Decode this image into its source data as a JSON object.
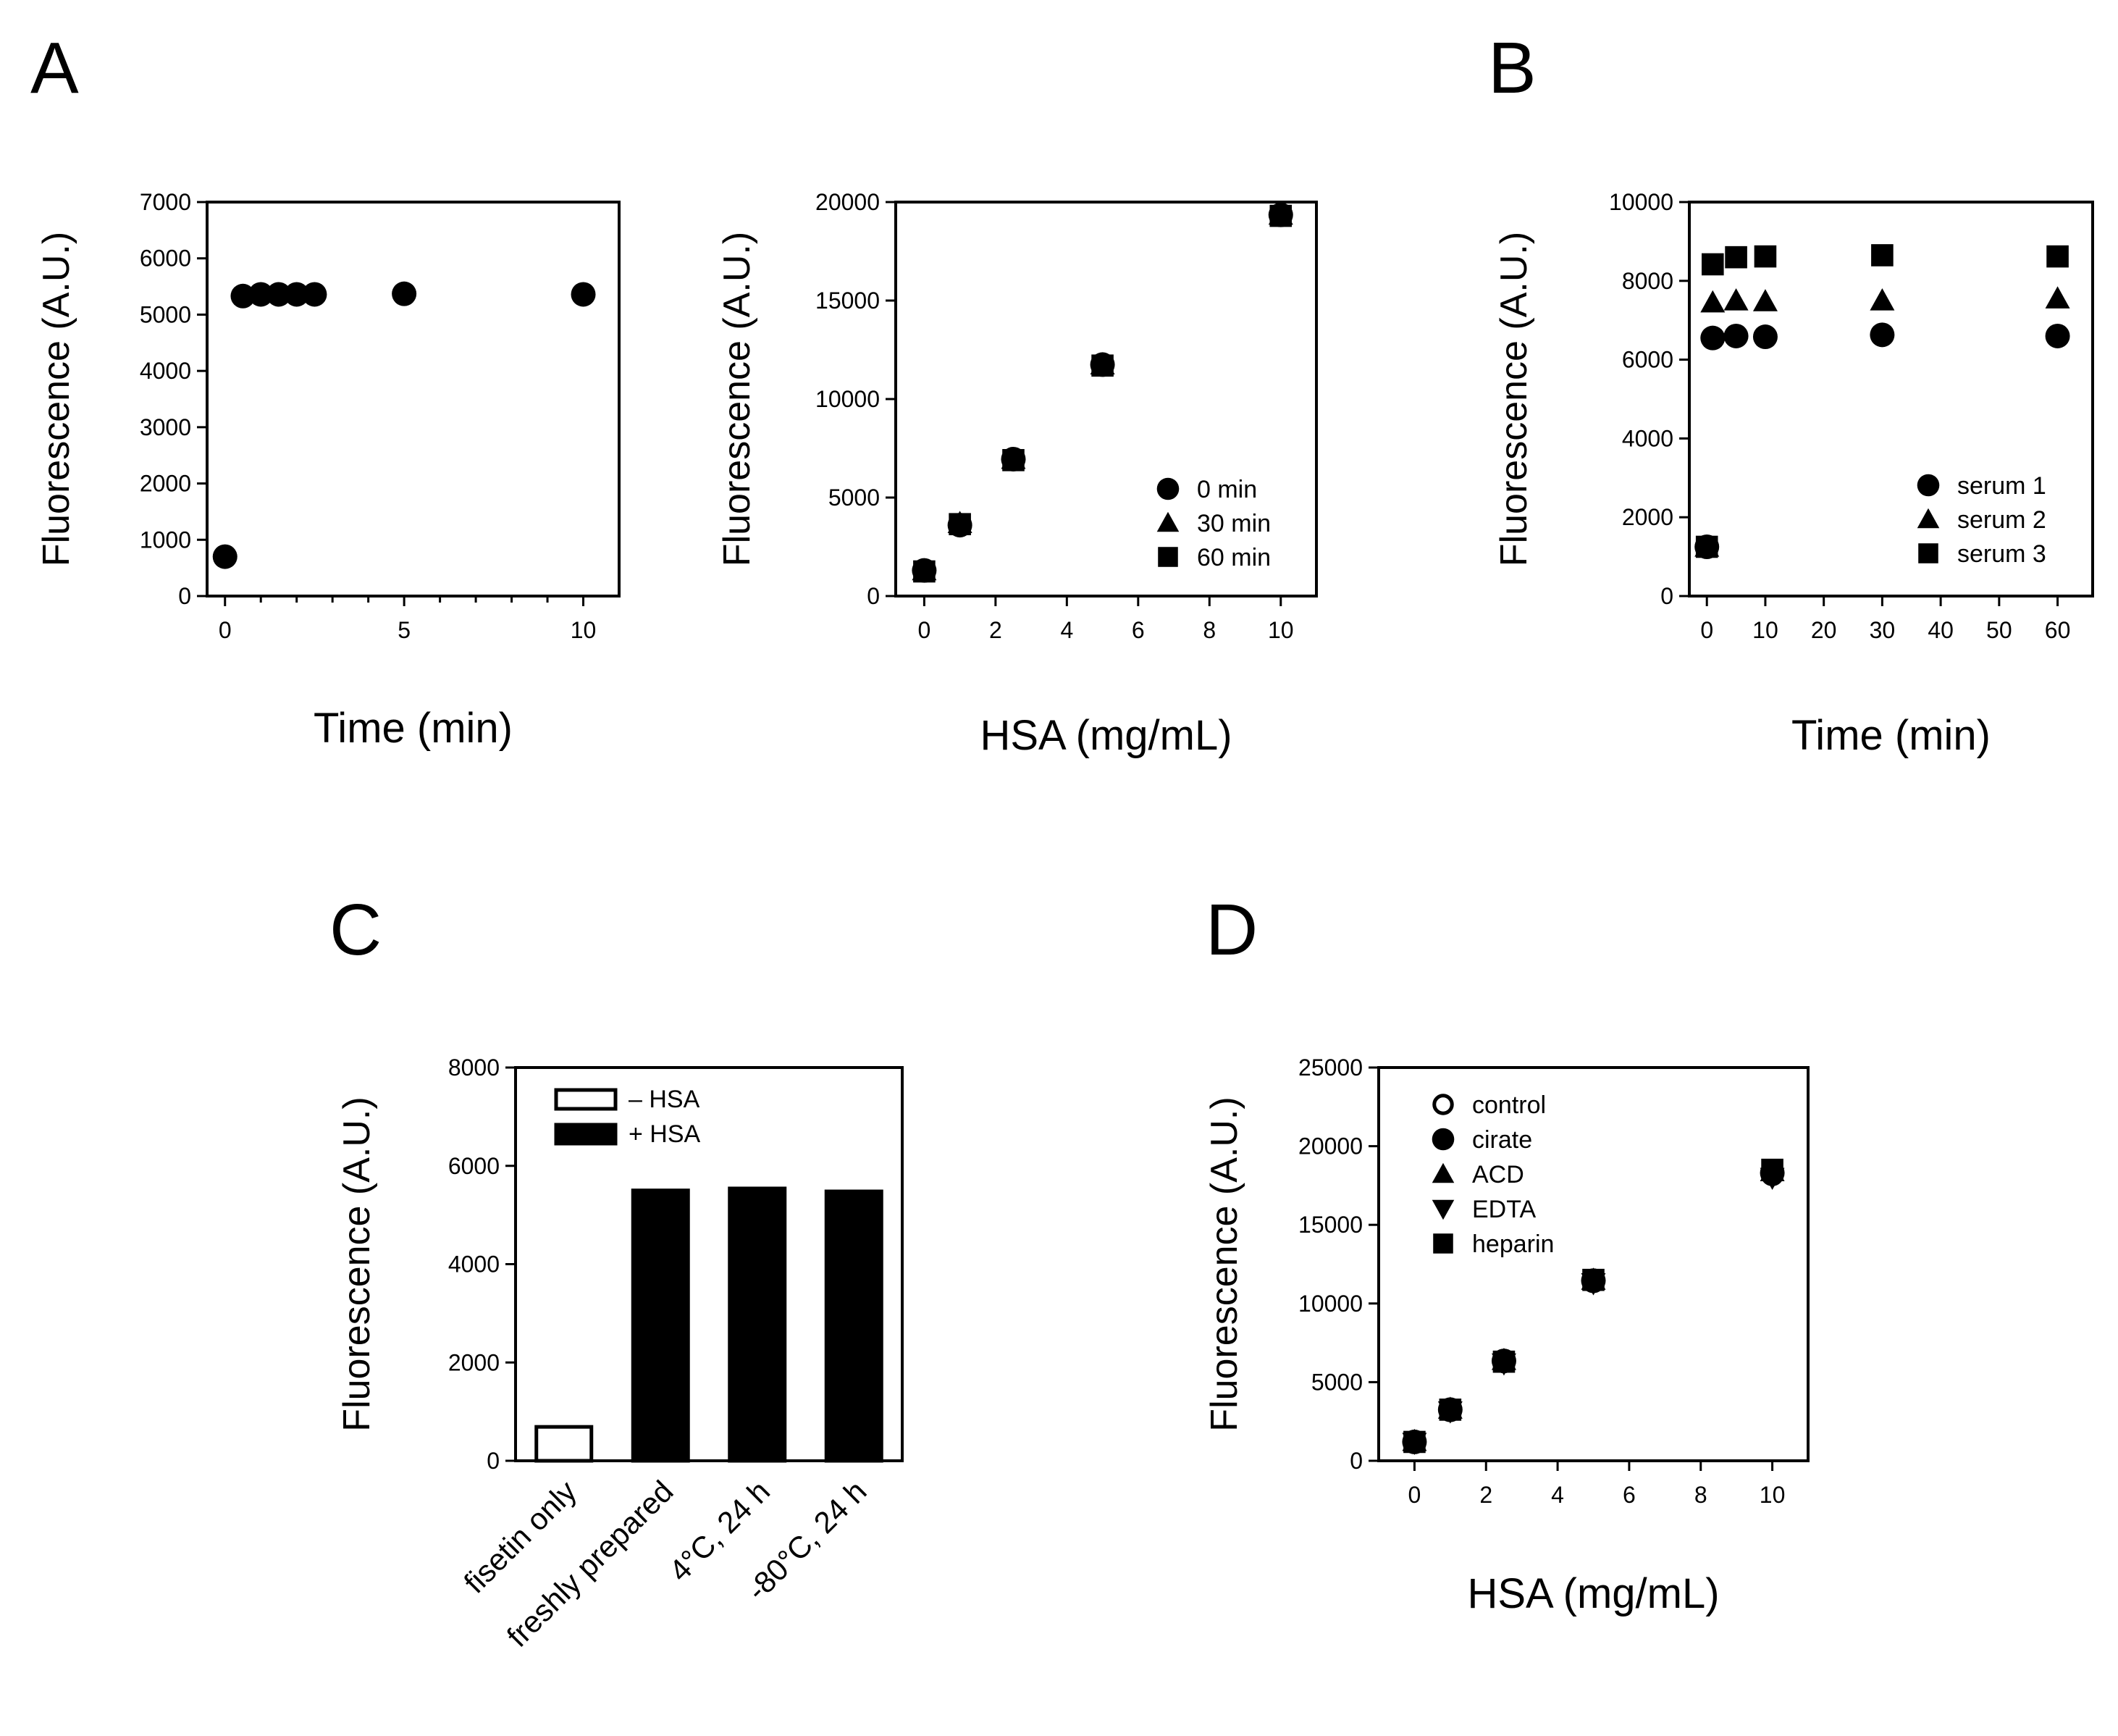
{
  "panel_letters": [
    "A",
    "B",
    "C",
    "D"
  ],
  "chart_data": [
    {
      "id": "A1",
      "type": "scatter",
      "title": "",
      "xlabel": "Time (min)",
      "ylabel": "Fluorescence (A.U.)",
      "xlim": [
        -0.5,
        11
      ],
      "ylim": [
        0,
        7000
      ],
      "xticks": [
        0,
        5,
        10
      ],
      "yticks": [
        0,
        1000,
        2000,
        3000,
        4000,
        5000,
        6000,
        7000
      ],
      "xminor": [
        1,
        2,
        3,
        4,
        6,
        7,
        8,
        9
      ],
      "series": [
        {
          "name": "",
          "marker": "circle",
          "x": [
            0,
            0.5,
            1,
            1.5,
            2,
            2.5,
            5,
            10
          ],
          "y": [
            700,
            5330,
            5360,
            5360,
            5360,
            5360,
            5370,
            5360
          ]
        }
      ]
    },
    {
      "id": "A2",
      "type": "scatter",
      "title": "",
      "xlabel": "HSA (mg/mL)",
      "ylabel": "Fluorescence (A.U.)",
      "xlim": [
        -0.8,
        11
      ],
      "ylim": [
        0,
        20000
      ],
      "xticks": [
        0,
        2,
        4,
        6,
        8,
        10
      ],
      "yticks": [
        0,
        5000,
        10000,
        15000,
        20000
      ],
      "legend": {
        "position": "bottom-right",
        "entries": [
          "0 min",
          "30 min",
          "60 min"
        ]
      },
      "series": [
        {
          "name": "0 min",
          "marker": "circle",
          "x": [
            0,
            1,
            2.5,
            5,
            10
          ],
          "y": [
            1300,
            3600,
            6950,
            11750,
            19350
          ]
        },
        {
          "name": "30 min",
          "marker": "triangle",
          "x": [
            0,
            1,
            2.5,
            5,
            10
          ],
          "y": [
            1300,
            3700,
            6950,
            11750,
            19350
          ]
        },
        {
          "name": "60 min",
          "marker": "square",
          "x": [
            0,
            1,
            2.5,
            5,
            10
          ],
          "y": [
            1250,
            3650,
            6900,
            11700,
            19300
          ]
        }
      ]
    },
    {
      "id": "B",
      "type": "scatter",
      "title": "",
      "xlabel": "Time (min)",
      "ylabel": "Fluorescence (A.U.)",
      "xlim": [
        -3,
        66
      ],
      "ylim": [
        0,
        10000
      ],
      "xticks": [
        0,
        10,
        20,
        30,
        40,
        50,
        60
      ],
      "yticks": [
        0,
        2000,
        4000,
        6000,
        8000,
        10000
      ],
      "legend": {
        "position": "bottom-right",
        "entries": [
          "serum 1",
          "serum 2",
          "serum 3"
        ]
      },
      "series": [
        {
          "name": "serum 1",
          "marker": "circle",
          "x": [
            0,
            1,
            5,
            10,
            30,
            60
          ],
          "y": [
            1250,
            6550,
            6600,
            6580,
            6630,
            6600
          ]
        },
        {
          "name": "serum 2",
          "marker": "triangle",
          "x": [
            0,
            1,
            5,
            10,
            30,
            60
          ],
          "y": [
            1250,
            7450,
            7500,
            7480,
            7500,
            7550
          ]
        },
        {
          "name": "serum 3",
          "marker": "square",
          "x": [
            0,
            1,
            5,
            10,
            30,
            60
          ],
          "y": [
            1250,
            8420,
            8600,
            8620,
            8650,
            8620
          ]
        }
      ]
    },
    {
      "id": "C",
      "type": "bar",
      "title": "",
      "xlabel": "",
      "ylabel": "Fluorescence (A.U.)",
      "ylim": [
        0,
        8000
      ],
      "yticks": [
        0,
        2000,
        4000,
        6000,
        8000
      ],
      "categories": [
        "fisetin only",
        "freshly prepared",
        "4°C, 24 h",
        "-80°C, 24 h"
      ],
      "legend": {
        "position": "top-left",
        "entries": [
          "– HSA",
          "+ HSA"
        ]
      },
      "series": [
        {
          "name": "– HSA",
          "fill": "#ffffff",
          "values": [
            690,
            null,
            null,
            null
          ]
        },
        {
          "name": "+ HSA",
          "fill": "#000000",
          "values": [
            null,
            5500,
            5540,
            5480
          ]
        }
      ]
    },
    {
      "id": "D",
      "type": "scatter",
      "title": "",
      "xlabel": "HSA (mg/mL)",
      "ylabel": "Fluorescence (A.U.)",
      "xlim": [
        -1,
        11
      ],
      "ylim": [
        0,
        25000
      ],
      "xticks": [
        0,
        2,
        4,
        6,
        8,
        10
      ],
      "yticks": [
        0,
        5000,
        10000,
        15000,
        20000,
        25000
      ],
      "legend": {
        "position": "top-left",
        "entries": [
          "control",
          "cirate",
          "ACD",
          "EDTA",
          "heparin"
        ]
      },
      "series": [
        {
          "name": "control",
          "marker": "circle-open",
          "x": [
            0,
            1,
            2.5,
            5,
            10
          ],
          "y": [
            1200,
            3200,
            6300,
            11400,
            18200
          ]
        },
        {
          "name": "cirate",
          "marker": "circle",
          "x": [
            0,
            1,
            2.5,
            5,
            10
          ],
          "y": [
            1200,
            3250,
            6350,
            11450,
            18300
          ]
        },
        {
          "name": "ACD",
          "marker": "triangle",
          "x": [
            0,
            1,
            2.5,
            5,
            10
          ],
          "y": [
            1250,
            3300,
            6400,
            11500,
            18400
          ]
        },
        {
          "name": "EDTA",
          "marker": "triangle-down",
          "x": [
            0,
            1,
            2.5,
            5,
            10
          ],
          "y": [
            1150,
            3150,
            6200,
            11300,
            18000
          ]
        },
        {
          "name": "heparin",
          "marker": "square",
          "x": [
            0,
            1,
            2.5,
            5,
            10
          ],
          "y": [
            1200,
            3250,
            6300,
            11500,
            18500
          ]
        }
      ]
    }
  ]
}
